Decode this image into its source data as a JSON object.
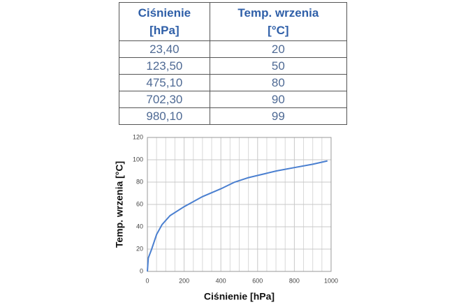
{
  "table": {
    "header": [
      [
        "Ciśnienie",
        "[hPa]"
      ],
      [
        "Temp. wrzenia",
        "[°C]"
      ]
    ],
    "rows": [
      [
        "23,40",
        "20"
      ],
      [
        "123,50",
        "50"
      ],
      [
        "475,10",
        "80"
      ],
      [
        "702,30",
        "90"
      ],
      [
        "980,10",
        "99"
      ]
    ]
  },
  "chart_data": {
    "type": "line",
    "x_label": "Ciśnienie [hPa]",
    "y_label": "Temp. wrzenia [°C]",
    "x": [
      0,
      5,
      23.4,
      50,
      80,
      123.5,
      200,
      300,
      400,
      475.1,
      550,
      702.3,
      800,
      900,
      980.1
    ],
    "values": [
      0,
      12,
      20,
      33,
      42,
      50,
      58,
      67,
      74,
      80,
      84,
      90,
      93,
      96,
      99
    ],
    "color": "#4a7fd0",
    "xlim": [
      0,
      1000
    ],
    "xticks": [
      0,
      200,
      400,
      600,
      800,
      1000
    ],
    "x_minor_grid": [
      50,
      100,
      150,
      250,
      300,
      350,
      450,
      500,
      550,
      650,
      700,
      750,
      850,
      900,
      950
    ],
    "ylim": [
      0,
      120
    ],
    "yticks": [
      0,
      20,
      40,
      60,
      80,
      100,
      120
    ],
    "grid": true
  }
}
